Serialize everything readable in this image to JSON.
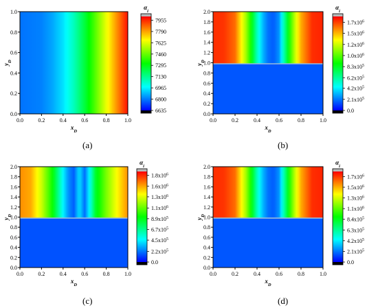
{
  "figure": {
    "panel_labels": [
      "(a)",
      "(b)",
      "(c)",
      "(d)"
    ]
  },
  "chart_data": [
    {
      "type": "heatmap",
      "panel": "(a)",
      "colormap": [
        "#000000",
        "#0000ff",
        "#00ffff",
        "#00ff00",
        "#ffff00",
        "#ff0000",
        "#b8b8b8"
      ],
      "xlabel": "x",
      "xlabel_sub": "D",
      "ylabel": "y",
      "ylabel_sub": "D",
      "xlim": [
        0.0,
        1.0
      ],
      "ylim": [
        0.0,
        1.0
      ],
      "xticks": [
        "0.0",
        "0.2",
        "0.4",
        "0.6",
        "0.8",
        "1.0"
      ],
      "yticks": [
        "0.0",
        "0.2",
        "0.4",
        "0.6",
        "0.8",
        "1.0"
      ],
      "colorbar": {
        "title": "α",
        "title_sub": "i",
        "min": 6635,
        "max": 8010,
        "ticks": [
          {
            "label": "6635",
            "value": 6635
          },
          {
            "label": "6800",
            "value": 6800
          },
          {
            "label": "6965",
            "value": 6965
          },
          {
            "label": "7130",
            "value": 7130
          },
          {
            "label": "7295",
            "value": 7295
          },
          {
            "label": "7460",
            "value": 7460
          },
          {
            "label": "7625",
            "value": 7625
          },
          {
            "label": "7790",
            "value": 7790
          },
          {
            "label": "7955",
            "value": 7955
          }
        ]
      },
      "field": {
        "description": "α_i increases with x_D, uniform in y_D",
        "x": [
          0.0,
          0.2,
          0.3,
          0.4,
          0.5,
          0.6,
          0.7,
          0.8,
          0.9,
          1.0
        ],
        "values": [
          6790,
          6810,
          6860,
          6940,
          7070,
          7240,
          7440,
          7640,
          7820,
          7990
        ]
      }
    },
    {
      "type": "heatmap",
      "panel": "(b)",
      "colormap": [
        "#000000",
        "#0000ff",
        "#00ffff",
        "#00ff00",
        "#ffff00",
        "#ff0000",
        "#b8b8b8"
      ],
      "xlabel": "x",
      "xlabel_sub": "D",
      "ylabel": "y",
      "ylabel_sub": "D",
      "xlim": [
        0.0,
        1.0
      ],
      "ylim": [
        0.0,
        2.0
      ],
      "xticks": [
        "0.0",
        "0.2",
        "0.4",
        "0.6",
        "0.8",
        "1.0"
      ],
      "yticks": [
        "0.0",
        "0.2",
        "0.4",
        "0.6",
        "0.8",
        "1.0",
        "1.2",
        "1.4",
        "1.6",
        "1.8",
        "2.0"
      ],
      "colorbar": {
        "title": "α",
        "title_sub": "i",
        "min": 0,
        "max": 1780000,
        "ticks": [
          {
            "base": "0.0",
            "exp": "",
            "value": 0
          },
          {
            "base": "2.1x10",
            "exp": "5",
            "value": 210000
          },
          {
            "base": "4.2x10",
            "exp": "5",
            "value": 420000
          },
          {
            "base": "6.2x10",
            "exp": "5",
            "value": 620000
          },
          {
            "base": "8.3x10",
            "exp": "5",
            "value": 830000
          },
          {
            "base": "1.0x10",
            "exp": "6",
            "value": 1040000
          },
          {
            "base": "1.2x10",
            "exp": "6",
            "value": 1250000
          },
          {
            "base": "1.5x10",
            "exp": "6",
            "value": 1460000
          },
          {
            "base": "1.7x10",
            "exp": "6",
            "value": 1670000
          }
        ]
      },
      "interface_y": 0.98,
      "lower_value": 150000,
      "field": {
        "description": "upper layer (y_D > 0.98): α_i varies with x_D, minimum at x_D = 0.55; lower layer uniform",
        "x": [
          0.0,
          0.1,
          0.2,
          0.3,
          0.35,
          0.4,
          0.45,
          0.5,
          0.55,
          0.6,
          0.65,
          0.7,
          0.75,
          0.8,
          0.9,
          1.0
        ],
        "values": [
          1700000,
          1690000,
          1590000,
          1170000,
          880000,
          560000,
          330000,
          200000,
          160000,
          260000,
          620000,
          970000,
          1260000,
          1480000,
          1700000,
          1720000
        ]
      }
    },
    {
      "type": "heatmap",
      "panel": "(c)",
      "colormap": [
        "#000000",
        "#0000ff",
        "#00ffff",
        "#00ff00",
        "#ffff00",
        "#ff0000",
        "#b8b8b8"
      ],
      "xlabel": "x",
      "xlabel_sub": "D",
      "ylabel": "y",
      "ylabel_sub": "D",
      "xlim": [
        0.0,
        1.0
      ],
      "ylim": [
        0.0,
        2.0
      ],
      "xticks": [
        "0.0",
        "0.2",
        "0.4",
        "0.6",
        "0.8",
        "1.0"
      ],
      "yticks": [
        "0.0",
        "0.2",
        "0.4",
        "0.6",
        "0.8",
        "1.0",
        "1.2",
        "1.4",
        "1.6",
        "1.8",
        "2.0"
      ],
      "colorbar": {
        "title": "α",
        "title_sub": "i",
        "min": 0,
        "max": 1860000,
        "ticks": [
          {
            "base": "0.0",
            "exp": "",
            "value": 0
          },
          {
            "base": "2.2x10",
            "exp": "5",
            "value": 220000
          },
          {
            "base": "4.5x10",
            "exp": "5",
            "value": 450000
          },
          {
            "base": "6.7x10",
            "exp": "5",
            "value": 670000
          },
          {
            "base": "8.9x10",
            "exp": "5",
            "value": 890000
          },
          {
            "base": "1.1x10",
            "exp": "6",
            "value": 1110000
          },
          {
            "base": "1.3x10",
            "exp": "6",
            "value": 1340000
          },
          {
            "base": "1.6x10",
            "exp": "6",
            "value": 1560000
          },
          {
            "base": "1.8x10",
            "exp": "6",
            "value": 1780000
          }
        ]
      },
      "interface_y": 0.98,
      "lower_value": 150000,
      "field": {
        "description": "upper layer: α_i varies with x_D, minima near x_D = 0.5 and 0.58",
        "x": [
          0.0,
          0.1,
          0.2,
          0.3,
          0.35,
          0.4,
          0.45,
          0.5,
          0.55,
          0.6,
          0.65,
          0.7,
          0.75,
          0.8,
          0.9,
          1.0
        ],
        "values": [
          1600000,
          1550000,
          1300000,
          950000,
          700000,
          450000,
          260000,
          170000,
          420000,
          200000,
          500000,
          850000,
          1000000,
          1150000,
          1400000,
          1600000
        ]
      }
    },
    {
      "type": "heatmap",
      "panel": "(d)",
      "colormap": [
        "#000000",
        "#0000ff",
        "#00ffff",
        "#00ff00",
        "#ffff00",
        "#ff0000",
        "#b8b8b8"
      ],
      "xlabel": "x",
      "xlabel_sub": "D",
      "ylabel": "y",
      "ylabel_sub": "D",
      "xlim": [
        0.0,
        1.0
      ],
      "ylim": [
        0.0,
        2.0
      ],
      "xticks": [
        "0.0",
        "0.2",
        "0.4",
        "0.6",
        "0.8",
        "1.0"
      ],
      "yticks": [
        "0.0",
        "0.2",
        "0.4",
        "0.6",
        "0.8",
        "1.0",
        "1.2",
        "1.4",
        "1.6",
        "1.8",
        "2.0"
      ],
      "colorbar": {
        "title": "α",
        "title_sub": "i",
        "min": 0,
        "max": 1780000,
        "ticks": [
          {
            "base": "0.0",
            "exp": "",
            "value": 0
          },
          {
            "base": "2.1x10",
            "exp": "5",
            "value": 210000
          },
          {
            "base": "4.2x10",
            "exp": "5",
            "value": 420000
          },
          {
            "base": "6.3x10",
            "exp": "5",
            "value": 630000
          },
          {
            "base": "8.4x10",
            "exp": "5",
            "value": 840000
          },
          {
            "base": "1.1x10",
            "exp": "6",
            "value": 1050000
          },
          {
            "base": "1.3x10",
            "exp": "6",
            "value": 1260000
          },
          {
            "base": "1.5x10",
            "exp": "6",
            "value": 1470000
          },
          {
            "base": "1.7x10",
            "exp": "6",
            "value": 1680000
          }
        ]
      },
      "interface_y": 0.98,
      "lower_value": 150000,
      "field": {
        "description": "upper layer (y_D > 0.98): α_i varies with x_D, minimum at x_D = 0.55; lower layer uniform",
        "x": [
          0.0,
          0.1,
          0.2,
          0.3,
          0.35,
          0.4,
          0.45,
          0.5,
          0.55,
          0.6,
          0.65,
          0.7,
          0.75,
          0.8,
          0.9,
          1.0
        ],
        "values": [
          1700000,
          1690000,
          1590000,
          1170000,
          880000,
          560000,
          330000,
          200000,
          160000,
          260000,
          620000,
          970000,
          1260000,
          1480000,
          1700000,
          1720000
        ]
      }
    }
  ]
}
